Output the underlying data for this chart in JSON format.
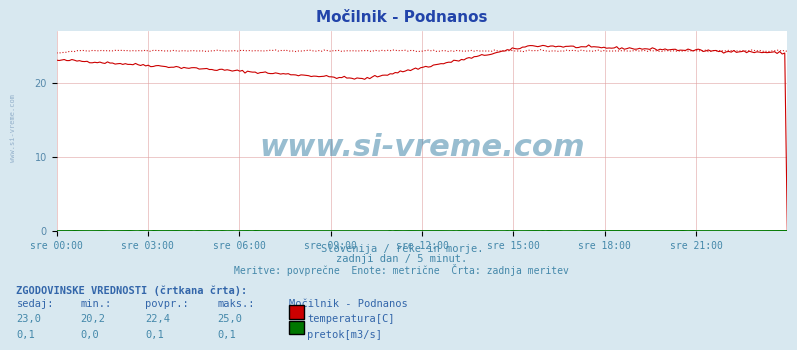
{
  "title": "Močilnik - Podnanos",
  "bg_color": "#d8e8f0",
  "plot_bg_color": "#ffffff",
  "grid_color": "#e0a0a0",
  "x_label_color": "#4488aa",
  "title_color": "#2244aa",
  "subtitle_lines": [
    "Slovenija / reke in morje.",
    "zadnji dan / 5 minut.",
    "Meritve: povprečne  Enote: metrične  Črta: zadnja meritev"
  ],
  "subtitle_color": "#4488aa",
  "watermark": "www.si-vreme.com",
  "watermark_color": "#4488aa",
  "x_ticks": [
    "sre 00:00",
    "sre 03:00",
    "sre 06:00",
    "sre 09:00",
    "sre 12:00",
    "sre 15:00",
    "sre 18:00",
    "sre 21:00"
  ],
  "y_ticks": [
    0,
    10,
    20
  ],
  "ylim": [
    0,
    27
  ],
  "xlim": [
    0,
    287
  ],
  "temp_color": "#cc0000",
  "flow_color": "#007700",
  "left_label_color": "#5588aa",
  "table_header_color": "#3366aa",
  "table_data_color": "#4488aa",
  "table_label_bold": true,
  "sedaj": [
    "23,0",
    "0,1"
  ],
  "min_val": [
    "20,2",
    "0,0"
  ],
  "povpr": [
    "22,4",
    "0,1"
  ],
  "maks": [
    "25,0",
    "0,1"
  ],
  "legend_labels": [
    "temperatura[C]",
    "pretok[m3/s]"
  ],
  "legend_colors": [
    "#cc0000",
    "#007700"
  ]
}
